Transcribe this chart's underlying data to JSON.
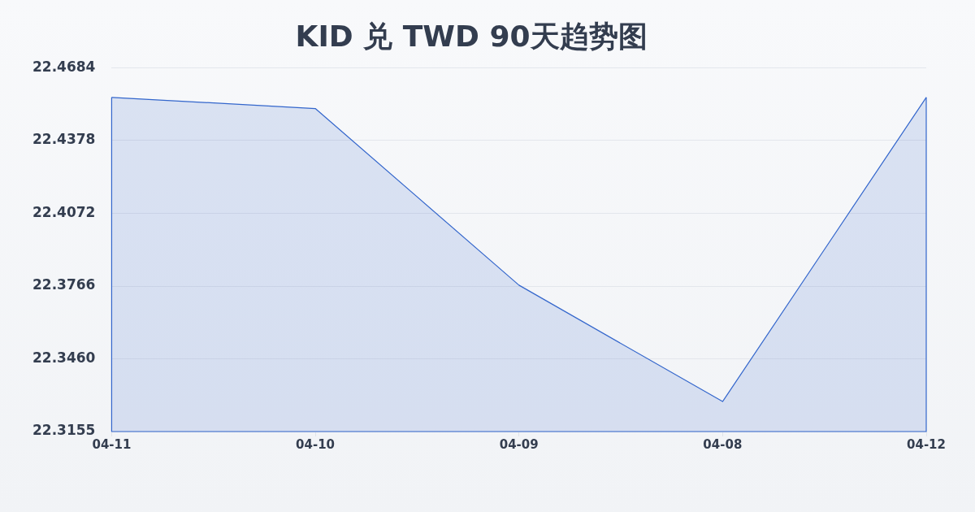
{
  "chart_data": {
    "type": "area",
    "title": "KID 兑 TWD 90天趋势图",
    "categories": [
      "04-11",
      "04-10",
      "04-09",
      "04-08",
      "04-12"
    ],
    "series": [
      {
        "color": "#3366cc",
        "values": [
          22.4559,
          22.4512,
          22.377,
          22.3281,
          22.4559
        ]
      }
    ],
    "ylim": [
      22.3155,
      22.4684
    ],
    "yticks": [
      22.3155,
      {
        "value": 22.346,
        "label": "22.3460"
      },
      22.3766,
      22.4072,
      22.4378,
      22.4684
    ],
    "grid": "y",
    "marker": "none",
    "line_style": "solid"
  }
}
